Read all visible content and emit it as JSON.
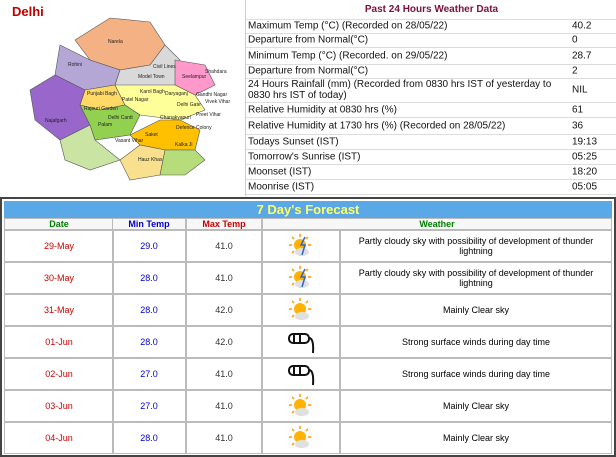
{
  "map": {
    "title": "Delhi",
    "labels": [
      "Narela",
      "Rohini",
      "Model Town",
      "Civil Lines",
      "Seelampur",
      "Shahdara",
      "Punjabi Bagh",
      "Patel Nagar",
      "Karol Bagh",
      "Daryaganj",
      "Najafgarh",
      "Rajouri Garden",
      "Delhi Cantt",
      "Delhi Gate",
      "Gandhi Nagar",
      "Preet Vihar",
      "Vivek Vihar",
      "Chanakyapuri",
      "Vasant Vihar",
      "Defence Colony",
      "Saket",
      "Hauz Khas",
      "Kalka Ji",
      "Palam"
    ]
  },
  "past": {
    "title": "Past 24 Hours Weather Data",
    "rows": [
      [
        "Maximum Temp (°C) (Recorded on 28/05/22)",
        "40.2"
      ],
      [
        "Departure from Normal(°C)",
        "0"
      ],
      [
        "Minimum Temp (°C) (Recorded. on 29/05/22)",
        "28.7"
      ],
      [
        "Departure from Normal(°C)",
        "2"
      ],
      [
        "24 Hours Rainfall (mm) (Recorded from 0830 hrs IST of yesterday to 0830 hrs IST of today)",
        "NIL"
      ],
      [
        "Relative Humidity at 0830 hrs (%)",
        "61"
      ],
      [
        "Relative Humidity at 1730 hrs (%) (Recorded on 28/05/22)",
        "36"
      ],
      [
        "Todays Sunset (IST)",
        "19:13"
      ],
      [
        "Tomorrow's Sunrise (IST)",
        "05:25"
      ],
      [
        "Moonset (IST)",
        "18:20"
      ],
      [
        "Moonrise (IST)",
        "05:05"
      ]
    ]
  },
  "forecast": {
    "title": "7 Day's Forecast",
    "headers": [
      "Date",
      "Min Temp",
      "Max Temp",
      "Weather"
    ],
    "rows": [
      [
        "29-May",
        "29.0",
        "41.0",
        "Partly cloudy sky with possibility of development of thunder lightning"
      ],
      [
        "30-May",
        "28.0",
        "41.0",
        "Partly cloudy sky with possibility of development of thunder lightning"
      ],
      [
        "31-May",
        "28.0",
        "42.0",
        "Mainly Clear sky"
      ],
      [
        "01-Jun",
        "28.0",
        "42.0",
        "Strong surface winds during day time"
      ],
      [
        "02-Jun",
        "27.0",
        "41.0",
        "Strong surface winds during day time"
      ],
      [
        "03-Jun",
        "27.0",
        "41.0",
        "Mainly Clear sky"
      ],
      [
        "04-Jun",
        "28.0",
        "41.0",
        "Mainly Clear sky"
      ]
    ]
  }
}
